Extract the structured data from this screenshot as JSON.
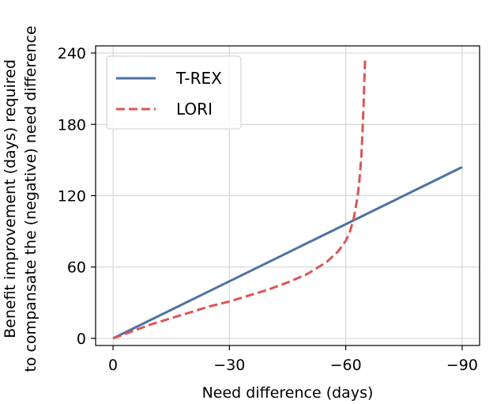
{
  "chart_data": {
    "type": "line",
    "title": "",
    "xlabel": "Need difference (days)",
    "ylabel_lines": [
      "Benefit improvement (days) required",
      "to compansate the (negative) need difference"
    ],
    "xlim": [
      0,
      -90
    ],
    "ylim": [
      0,
      240
    ],
    "xticks": [
      0,
      -30,
      -60,
      -90
    ],
    "xtick_labels": [
      "0",
      "−30",
      "−60",
      "−90"
    ],
    "yticks": [
      0,
      60,
      120,
      180,
      240
    ],
    "ytick_labels": [
      "0",
      "60",
      "120",
      "180",
      "240"
    ],
    "grid": true,
    "legend_position": "upper-left",
    "series": [
      {
        "name": "T-REX",
        "style": "solid",
        "color": "#4c72a4",
        "x": [
          0,
          -90
        ],
        "y": [
          0,
          144
        ]
      },
      {
        "name": "LORI",
        "style": "dashed",
        "color": "#dd5555",
        "x": [
          0,
          -5,
          -10,
          -15,
          -20,
          -25,
          -30,
          -35,
          -40,
          -45,
          -50,
          -55,
          -58,
          -60,
          -61,
          -62,
          -63,
          -63.5,
          -64,
          -64.3,
          -64.6,
          -64.8,
          -65
        ],
        "y": [
          0,
          6,
          12,
          17,
          22,
          27,
          31,
          36,
          41,
          47,
          54,
          64,
          73,
          82,
          89,
          100,
          118,
          132,
          152,
          172,
          197,
          218,
          236
        ]
      }
    ]
  }
}
